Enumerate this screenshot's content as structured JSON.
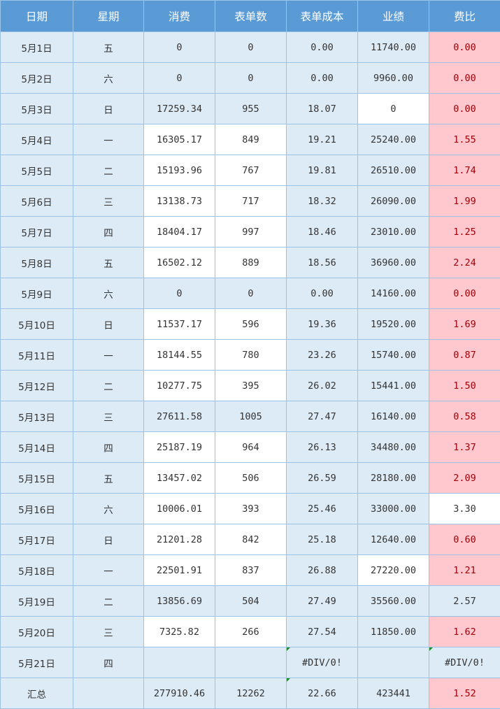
{
  "headers": [
    "日期",
    "星期",
    "消费",
    "表单数",
    "表单成本",
    "业绩",
    "费比"
  ],
  "rows": [
    {
      "date": "5月1日",
      "weekday": "五",
      "spend": "0",
      "forms": "0",
      "cost": "0.00",
      "sales": "11740.00",
      "ratio": "0.00"
    },
    {
      "date": "5月2日",
      "weekday": "六",
      "spend": "0",
      "forms": "0",
      "cost": "0.00",
      "sales": "9960.00",
      "ratio": "0.00"
    },
    {
      "date": "5月3日",
      "weekday": "日",
      "spend": "17259.34",
      "forms": "955",
      "cost": "18.07",
      "sales": "0",
      "ratio": "0.00"
    },
    {
      "date": "5月4日",
      "weekday": "一",
      "spend": "16305.17",
      "forms": "849",
      "cost": "19.21",
      "sales": "25240.00",
      "ratio": "1.55"
    },
    {
      "date": "5月5日",
      "weekday": "二",
      "spend": "15193.96",
      "forms": "767",
      "cost": "19.81",
      "sales": "26510.00",
      "ratio": "1.74"
    },
    {
      "date": "5月6日",
      "weekday": "三",
      "spend": "13138.73",
      "forms": "717",
      "cost": "18.32",
      "sales": "26090.00",
      "ratio": "1.99"
    },
    {
      "date": "5月7日",
      "weekday": "四",
      "spend": "18404.17",
      "forms": "997",
      "cost": "18.46",
      "sales": "23010.00",
      "ratio": "1.25"
    },
    {
      "date": "5月8日",
      "weekday": "五",
      "spend": "16502.12",
      "forms": "889",
      "cost": "18.56",
      "sales": "36960.00",
      "ratio": "2.24"
    },
    {
      "date": "5月9日",
      "weekday": "六",
      "spend": "0",
      "forms": "0",
      "cost": "0.00",
      "sales": "14160.00",
      "ratio": "0.00"
    },
    {
      "date": "5月10日",
      "weekday": "日",
      "spend": "11537.17",
      "forms": "596",
      "cost": "19.36",
      "sales": "19520.00",
      "ratio": "1.69"
    },
    {
      "date": "5月11日",
      "weekday": "一",
      "spend": "18144.55",
      "forms": "780",
      "cost": "23.26",
      "sales": "15740.00",
      "ratio": "0.87"
    },
    {
      "date": "5月12日",
      "weekday": "二",
      "spend": "10277.75",
      "forms": "395",
      "cost": "26.02",
      "sales": "15441.00",
      "ratio": "1.50"
    },
    {
      "date": "5月13日",
      "weekday": "三",
      "spend": "27611.58",
      "forms": "1005",
      "cost": "27.47",
      "sales": "16140.00",
      "ratio": "0.58"
    },
    {
      "date": "5月14日",
      "weekday": "四",
      "spend": "25187.19",
      "forms": "964",
      "cost": "26.13",
      "sales": "34480.00",
      "ratio": "1.37"
    },
    {
      "date": "5月15日",
      "weekday": "五",
      "spend": "13457.02",
      "forms": "506",
      "cost": "26.59",
      "sales": "28180.00",
      "ratio": "2.09"
    },
    {
      "date": "5月16日",
      "weekday": "六",
      "spend": "10006.01",
      "forms": "393",
      "cost": "25.46",
      "sales": "33000.00",
      "ratio": "3.30"
    },
    {
      "date": "5月17日",
      "weekday": "日",
      "spend": "21201.28",
      "forms": "842",
      "cost": "25.18",
      "sales": "12640.00",
      "ratio": "0.60"
    },
    {
      "date": "5月18日",
      "weekday": "一",
      "spend": "22501.91",
      "forms": "837",
      "cost": "26.88",
      "sales": "27220.00",
      "ratio": "1.21"
    },
    {
      "date": "5月19日",
      "weekday": "二",
      "spend": "13856.69",
      "forms": "504",
      "cost": "27.49",
      "sales": "35560.00",
      "ratio": "2.57"
    },
    {
      "date": "5月20日",
      "weekday": "三",
      "spend": "7325.82",
      "forms": "266",
      "cost": "27.54",
      "sales": "11850.00",
      "ratio": "1.62"
    },
    {
      "date": "5月21日",
      "weekday": "四",
      "spend": "",
      "forms": "",
      "cost": "#DIV/0!",
      "sales": "",
      "ratio": "#DIV/0!"
    }
  ],
  "total": {
    "label": "汇总",
    "weekday": "",
    "spend": "277910.46",
    "forms": "12262",
    "cost": "22.66",
    "sales": "423441",
    "ratio": "1.52"
  },
  "colors": {
    "header": "#5b9bd5",
    "row_fill": "#ddebf7",
    "highlight_fill": "#ffc7ce",
    "highlight_text": "#9c0006",
    "border": "#9cc2e5",
    "error_marker": "#1e8a2f"
  }
}
